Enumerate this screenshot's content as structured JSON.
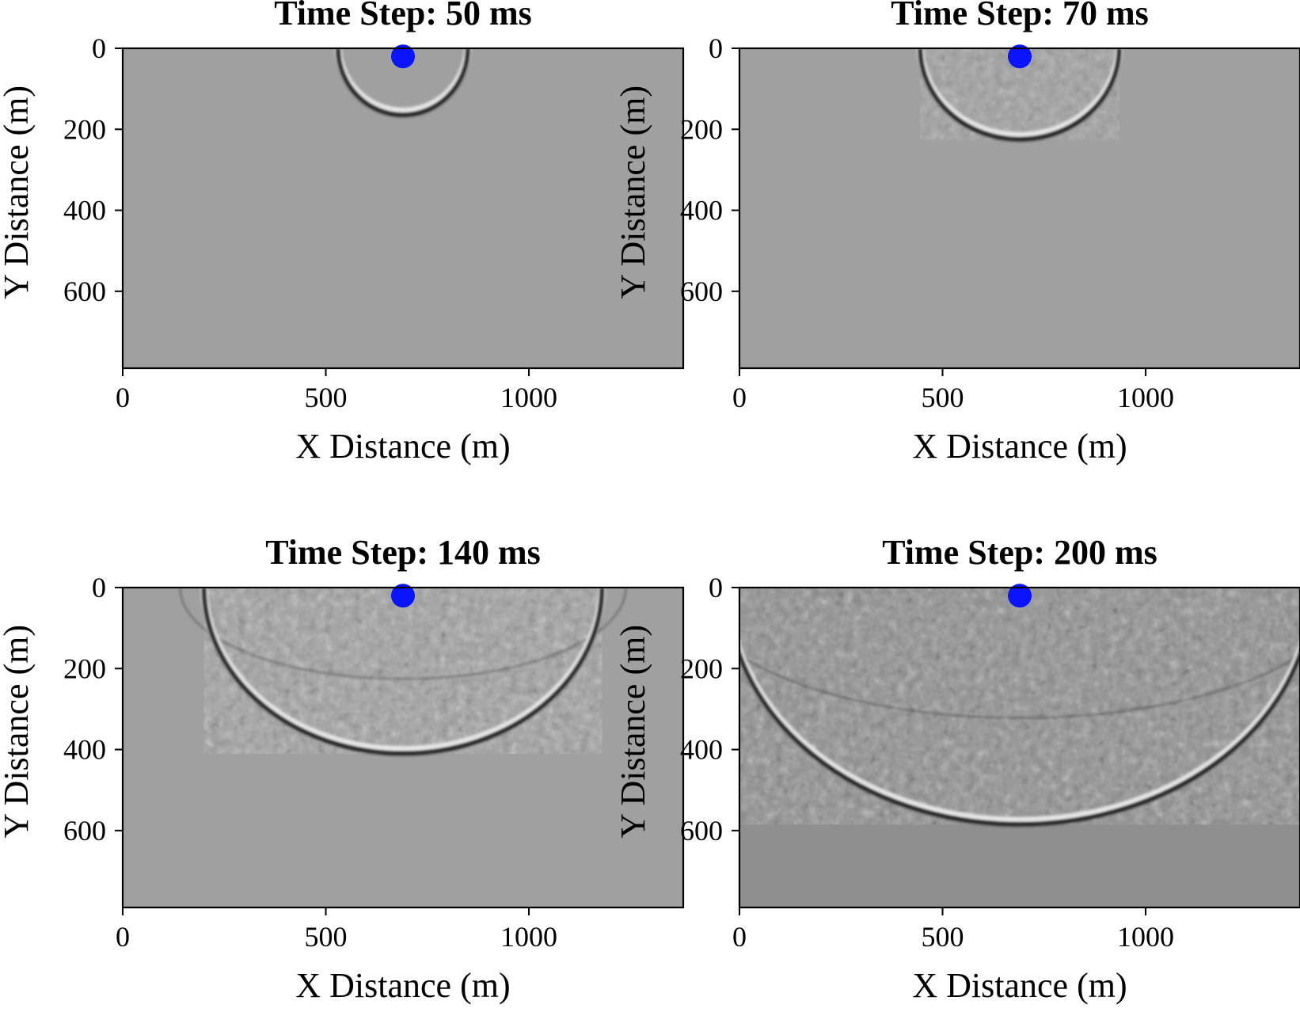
{
  "colors": {
    "background_gray": "#a0a0a0",
    "late_background_gray": "#8f8f8f",
    "source_marker": "#0a14ff",
    "wavefront_dark": "#1a1a1a",
    "wavefront_light": "#e6e6e6",
    "axis": "#000000"
  },
  "chart_data": [
    {
      "type": "heatmap",
      "title": "Time Step: 50 ms",
      "time_ms": 50,
      "xlabel": "X Distance (m)",
      "ylabel": "Y Distance (m)",
      "xlim": [
        0,
        1380
      ],
      "ylim": [
        790,
        0
      ],
      "x_ticks": [
        "0",
        "500",
        "1000"
      ],
      "y_ticks": [
        "0",
        "200",
        "400",
        "600"
      ],
      "source": {
        "x": 690,
        "y": 20
      },
      "wavefront": {
        "half_width": 160,
        "depth": 165
      },
      "grid": false
    },
    {
      "type": "heatmap",
      "title": "Time Step: 70 ms",
      "time_ms": 70,
      "xlabel": "X Distance (m)",
      "ylabel": "Y Distance (m)",
      "xlim": [
        0,
        1380
      ],
      "ylim": [
        790,
        0
      ],
      "x_ticks": [
        "0",
        "500",
        "1000"
      ],
      "y_ticks": [
        "0",
        "200",
        "400",
        "600"
      ],
      "source": {
        "x": 690,
        "y": 20
      },
      "wavefront": {
        "half_width": 245,
        "depth": 225
      },
      "grid": false
    },
    {
      "type": "heatmap",
      "title": "Time Step: 140 ms",
      "time_ms": 140,
      "xlabel": "X Distance (m)",
      "ylabel": "Y Distance (m)",
      "xlim": [
        0,
        1380
      ],
      "ylim": [
        790,
        0
      ],
      "x_ticks": [
        "0",
        "500",
        "1000"
      ],
      "y_ticks": [
        "0",
        "200",
        "400",
        "600"
      ],
      "source": {
        "x": 690,
        "y": 20
      },
      "wavefront": {
        "half_width": 490,
        "depth": 410
      },
      "grid": false
    },
    {
      "type": "heatmap",
      "title": "Time Step: 200 ms",
      "time_ms": 200,
      "xlabel": "X Distance (m)",
      "ylabel": "Y Distance (m)",
      "xlim": [
        0,
        1380
      ],
      "ylim": [
        790,
        0
      ],
      "x_ticks": [
        "0",
        "500",
        "1000"
      ],
      "y_ticks": [
        "0",
        "200",
        "400",
        "600"
      ],
      "source": {
        "x": 690,
        "y": 20
      },
      "wavefront": {
        "half_width": 720,
        "depth": 585
      },
      "grid": false
    }
  ]
}
